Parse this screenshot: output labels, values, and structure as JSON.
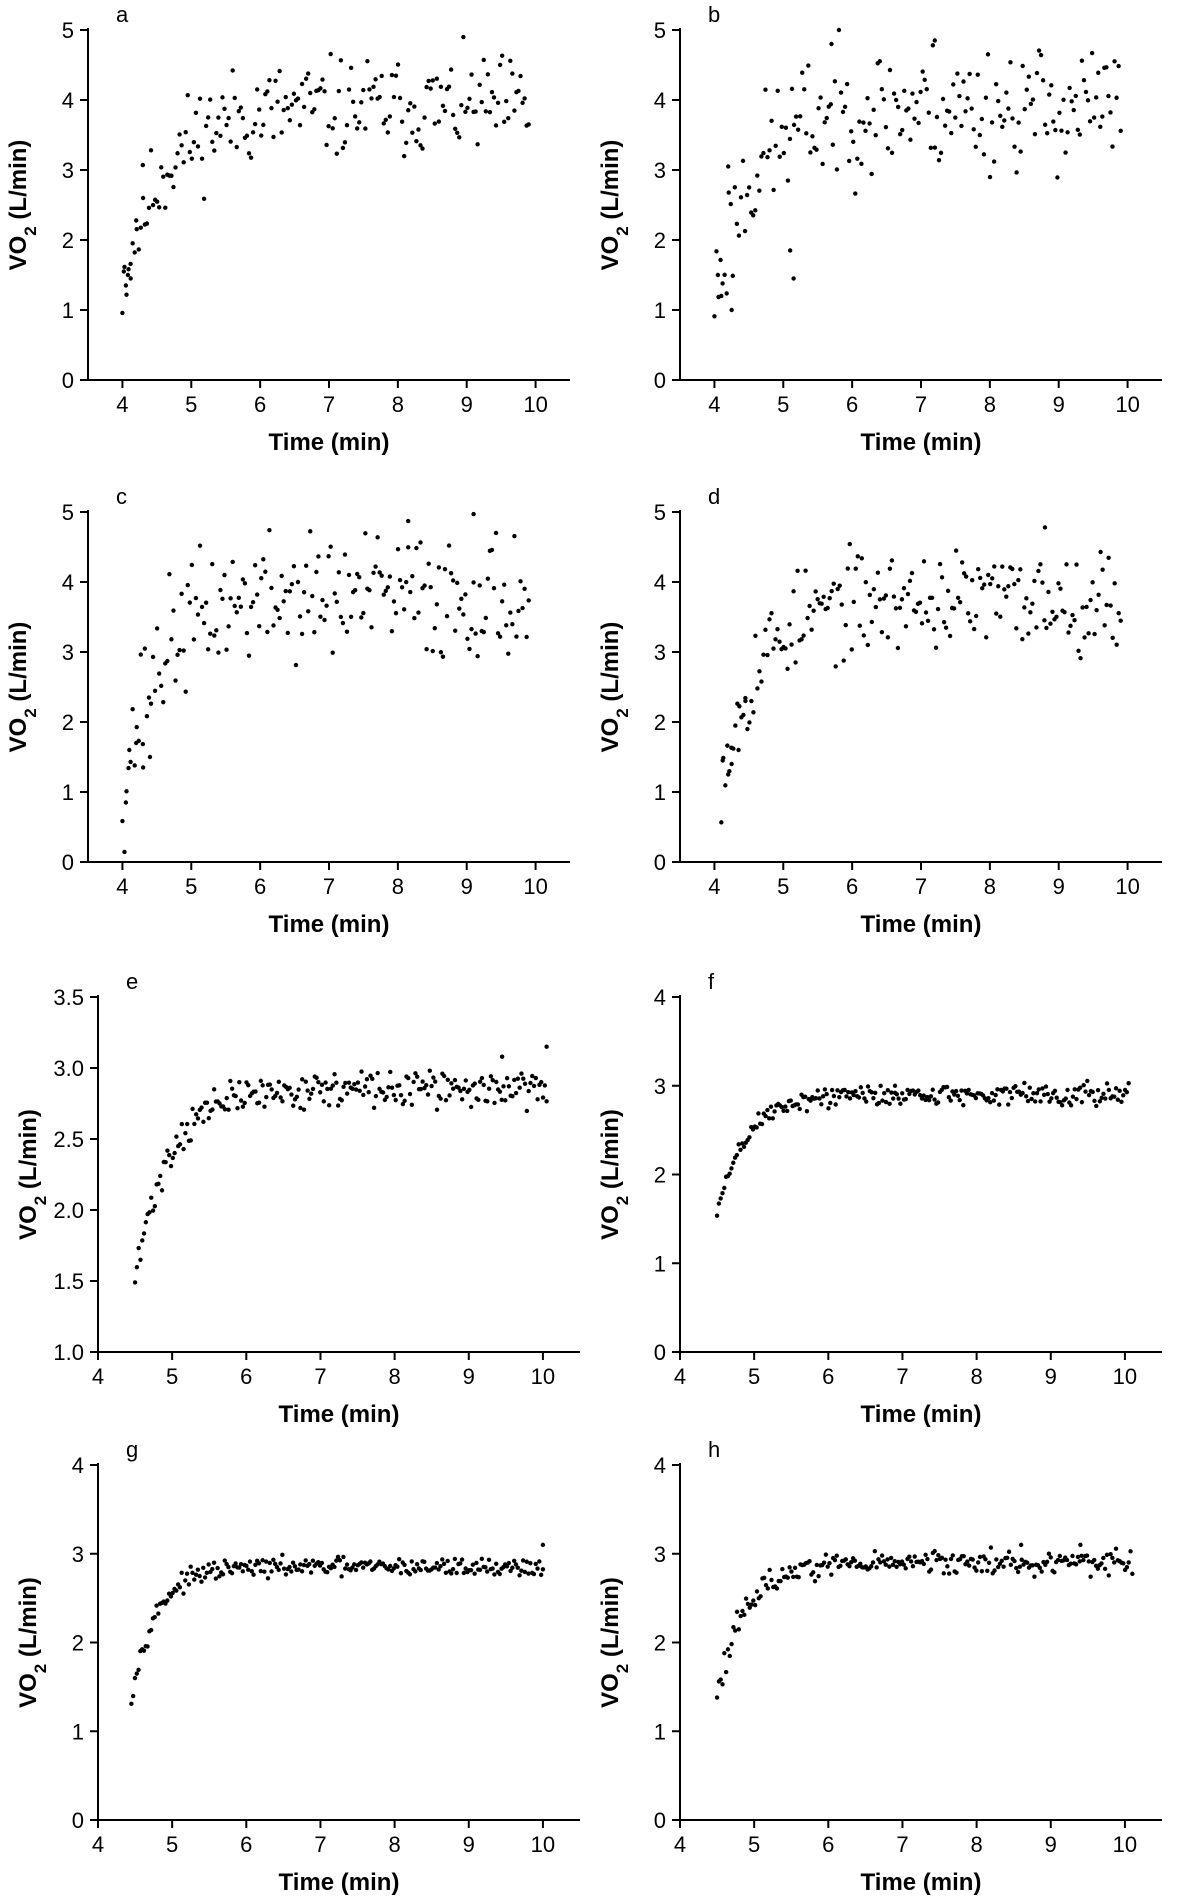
{
  "figure": {
    "background": "#ffffff",
    "ink": "#000000"
  },
  "chart_data": [
    {
      "id": "a",
      "panel_label": "a",
      "type": "scatter",
      "grid": false,
      "xlabel": "Time (min)",
      "ylabel": "VO2 (L/min)",
      "xlim": [
        3.5,
        10.5
      ],
      "ylim": [
        0,
        5
      ],
      "xticks": [
        4,
        5,
        6,
        7,
        8,
        9,
        10
      ],
      "yticks": [
        0,
        1,
        2,
        3,
        4,
        5
      ],
      "yticks_format": "int",
      "sample": {
        "x_start": 4.0,
        "x_end": 9.9,
        "rise": [
          1.4,
          3.9,
          1.1
        ],
        "noise": 0.35,
        "n": 200,
        "seed": 11
      },
      "series": [
        {
          "x": [
            4.02,
            4.05,
            4.08,
            4.12,
            4.2,
            4.3
          ],
          "y": [
            1.55,
            1.35,
            1.5,
            1.45,
            2.28,
            2.6
          ]
        }
      ]
    },
    {
      "id": "b",
      "panel_label": "b",
      "type": "scatter",
      "grid": false,
      "xlabel": "Time (min)",
      "ylabel": "VO2 (L/min)",
      "xlim": [
        3.5,
        10.5
      ],
      "ylim": [
        0,
        5
      ],
      "xticks": [
        4,
        5,
        6,
        7,
        8,
        9,
        10
      ],
      "yticks": [
        0,
        1,
        2,
        3,
        4,
        5
      ],
      "yticks_format": "int",
      "sample": {
        "x_start": 4.0,
        "x_end": 9.9,
        "rise": [
          1.2,
          3.9,
          1.0
        ],
        "noise": 0.45,
        "n": 200,
        "seed": 23
      },
      "series": [
        {
          "x": [
            4.05,
            4.1,
            4.2,
            4.25,
            5.1,
            5.15,
            5.7,
            7.2
          ],
          "y": [
            1.5,
            1.2,
            3.05,
            1.0,
            1.85,
            1.45,
            4.8,
            4.85
          ]
        }
      ]
    },
    {
      "id": "c",
      "panel_label": "c",
      "type": "scatter",
      "grid": false,
      "xlabel": "Time (min)",
      "ylabel": "VO2 (L/min)",
      "xlim": [
        3.5,
        10.5
      ],
      "ylim": [
        0,
        5
      ],
      "xticks": [
        4,
        5,
        6,
        7,
        8,
        9,
        10
      ],
      "yticks": [
        0,
        1,
        2,
        3,
        4,
        5
      ],
      "yticks_format": "int",
      "sample": {
        "x_start": 4.0,
        "x_end": 9.9,
        "rise": [
          1.0,
          3.8,
          0.9
        ],
        "noise": 0.45,
        "n": 200,
        "seed": 37
      },
      "series": [
        {
          "x": [
            4.05,
            4.1,
            4.2,
            4.3,
            4.4,
            8.15,
            9.1
          ],
          "y": [
            0.85,
            1.6,
            1.7,
            1.35,
            1.5,
            4.87,
            4.97
          ]
        }
      ]
    },
    {
      "id": "d",
      "panel_label": "d",
      "type": "scatter",
      "grid": false,
      "xlabel": "Time (min)",
      "ylabel": "VO2 (L/min)",
      "xlim": [
        3.5,
        10.5
      ],
      "ylim": [
        0,
        5
      ],
      "xticks": [
        4,
        5,
        6,
        7,
        8,
        9,
        10
      ],
      "yticks": [
        0,
        1,
        2,
        3,
        4,
        5
      ],
      "yticks_format": "int",
      "sample": {
        "x_start": 4.1,
        "x_end": 9.9,
        "rise": [
          1.3,
          3.75,
          1.0
        ],
        "noise": 0.35,
        "n": 200,
        "seed": 53
      },
      "series": [
        {
          "x": [
            4.12,
            4.2,
            4.25,
            4.35,
            4.45,
            8.8
          ],
          "y": [
            1.45,
            1.25,
            1.4,
            1.6,
            2.3,
            4.78
          ]
        }
      ]
    },
    {
      "id": "e",
      "panel_label": "e",
      "type": "scatter",
      "grid": false,
      "xlabel": "Time (min)",
      "ylabel": "VO2 (L/min)",
      "xlim": [
        4,
        10.5
      ],
      "ylim": [
        1.0,
        3.5
      ],
      "xticks": [
        4,
        5,
        6,
        7,
        8,
        9,
        10
      ],
      "yticks": [
        1.0,
        1.5,
        2.0,
        2.5,
        3.0,
        3.5
      ],
      "yticks_format": "fixed1",
      "sample": {
        "x_start": 4.5,
        "x_end": 10.05,
        "rise": [
          1.5,
          2.85,
          0.8
        ],
        "noise": 0.06,
        "n": 230,
        "seed": 71
      },
      "series": [
        {
          "x": [
            9.45,
            10.05
          ],
          "y": [
            3.08,
            3.15
          ]
        }
      ]
    },
    {
      "id": "f",
      "panel_label": "f",
      "type": "scatter",
      "grid": false,
      "xlabel": "Time (min)",
      "ylabel": "VO2 (L/min)",
      "xlim": [
        4,
        10.5
      ],
      "ylim": [
        0,
        4
      ],
      "xticks": [
        4,
        5,
        6,
        7,
        8,
        9,
        10
      ],
      "yticks": [
        0,
        1,
        2,
        3,
        4
      ],
      "yticks_format": "int",
      "sample": {
        "x_start": 4.5,
        "x_end": 10.05,
        "rise": [
          1.55,
          2.9,
          0.7
        ],
        "noise": 0.06,
        "n": 230,
        "seed": 89
      },
      "series": [
        {
          "x": [
            6.9
          ],
          "y": [
            3.0
          ]
        }
      ]
    },
    {
      "id": "g",
      "panel_label": "g",
      "type": "scatter",
      "grid": false,
      "xlabel": "Time (min)",
      "ylabel": "VO2 (L/min)",
      "xlim": [
        4,
        10.5
      ],
      "ylim": [
        0,
        4
      ],
      "xticks": [
        4,
        5,
        6,
        7,
        8,
        9,
        10
      ],
      "yticks": [
        0,
        1,
        2,
        3,
        4
      ],
      "yticks_format": "int",
      "sample": {
        "x_start": 4.45,
        "x_end": 10.0,
        "rise": [
          1.4,
          2.85,
          0.6
        ],
        "noise": 0.05,
        "n": 230,
        "seed": 97
      },
      "series": [
        {
          "x": [
            10.0
          ],
          "y": [
            3.1
          ]
        }
      ]
    },
    {
      "id": "h",
      "panel_label": "h",
      "type": "scatter",
      "grid": false,
      "xlabel": "Time (min)",
      "ylabel": "VO2 (L/min)",
      "xlim": [
        4,
        10.5
      ],
      "ylim": [
        0,
        4
      ],
      "xticks": [
        4,
        5,
        6,
        7,
        8,
        9,
        10
      ],
      "yticks": [
        0,
        1,
        2,
        3,
        4
      ],
      "yticks_format": "int",
      "sample": {
        "x_start": 4.5,
        "x_end": 10.1,
        "rise": [
          1.45,
          2.9,
          0.7
        ],
        "noise": 0.07,
        "n": 230,
        "seed": 113
      },
      "series": [
        {
          "x": [
            8.6,
            9.4
          ],
          "y": [
            3.1,
            3.1
          ]
        }
      ]
    }
  ]
}
